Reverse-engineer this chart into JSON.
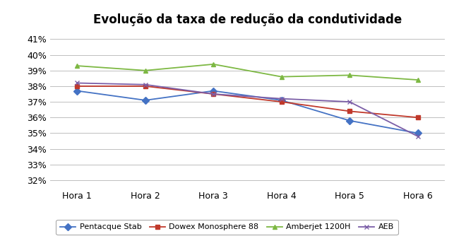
{
  "title": "Evolução da taxa de redução da condutividade",
  "x_labels": [
    "Hora 1",
    "Hora 2",
    "Hora 3",
    "Hora 4",
    "Hora 5",
    "Hora 6"
  ],
  "series": [
    {
      "name": "Pentacque Stab",
      "color": "#4472C4",
      "marker": "D",
      "markersize": 5,
      "values": [
        0.377,
        0.371,
        0.377,
        0.371,
        0.358,
        0.35
      ]
    },
    {
      "name": "Dowex Monosphere 88",
      "color": "#C0392B",
      "marker": "s",
      "markersize": 5,
      "values": [
        0.38,
        0.38,
        0.375,
        0.37,
        0.364,
        0.36
      ]
    },
    {
      "name": "Amberjet 1200H",
      "color": "#7DB843",
      "marker": "^",
      "markersize": 5,
      "values": [
        0.393,
        0.39,
        0.394,
        0.386,
        0.387,
        0.384
      ]
    },
    {
      "name": "AEB",
      "color": "#7B5EA7",
      "marker": "x",
      "markersize": 5,
      "values": [
        0.382,
        0.381,
        0.375,
        0.372,
        0.37,
        0.348
      ]
    }
  ],
  "ylim": [
    0.315,
    0.415
  ],
  "yticks": [
    0.32,
    0.33,
    0.34,
    0.35,
    0.36,
    0.37,
    0.38,
    0.39,
    0.4,
    0.41
  ],
  "background_color": "#FFFFFF",
  "grid_color": "#BFBFBF",
  "title_fontsize": 12,
  "tick_fontsize": 9
}
